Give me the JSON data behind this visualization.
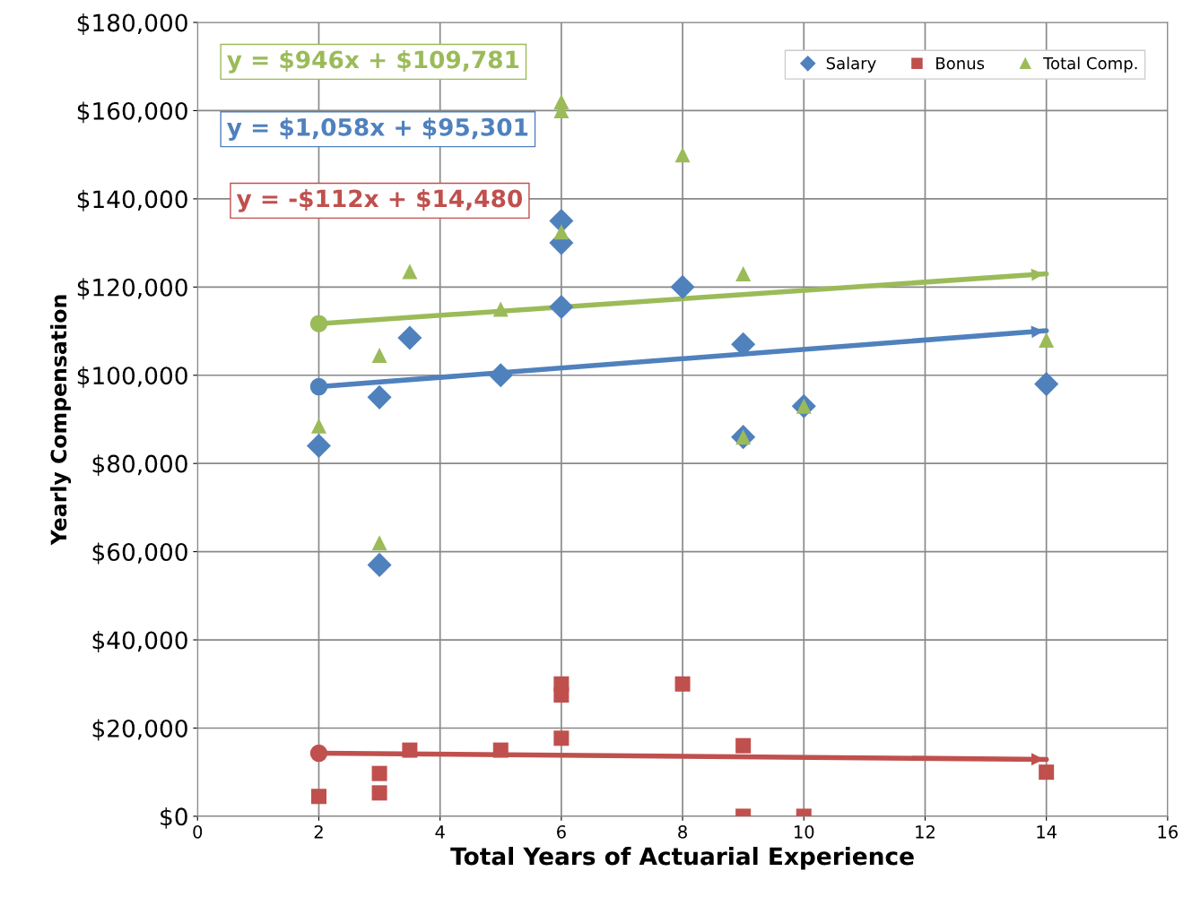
{
  "chart_data": {
    "type": "scatter",
    "xlabel": "Total Years of Actuarial Experience",
    "ylabel": "Yearly Compensation",
    "xlim": [
      0,
      16
    ],
    "xticks": [
      0,
      2,
      4,
      6,
      8,
      10,
      12,
      14,
      16
    ],
    "ylim": [
      0,
      180000
    ],
    "yticks": [
      {
        "value": 0,
        "label": "$0"
      },
      {
        "value": 20000,
        "label": "$20,000"
      },
      {
        "value": 40000,
        "label": "$40,000"
      },
      {
        "value": 60000,
        "label": "$60,000"
      },
      {
        "value": 80000,
        "label": "$80,000"
      },
      {
        "value": 100000,
        "label": "$100,000"
      },
      {
        "value": 120000,
        "label": "$120,000"
      },
      {
        "value": 140000,
        "label": "$140,000"
      },
      {
        "value": 160000,
        "label": "$160,000"
      },
      {
        "value": 180000,
        "label": "$180,000"
      }
    ],
    "grid": true,
    "legend": "top right",
    "series": [
      {
        "name": "Salary",
        "color": "#4f81bd",
        "marker": "diamond",
        "x": [
          2,
          3,
          3,
          3.5,
          5,
          6,
          6,
          6,
          8,
          9,
          9,
          10,
          14
        ],
        "values": [
          84000,
          95000,
          57000,
          108500,
          100000,
          135000,
          130000,
          115500,
          120000,
          107000,
          86000,
          93000,
          98000
        ]
      },
      {
        "name": "Bonus",
        "color": "#c0504d",
        "marker": "square",
        "x": [
          2,
          3,
          3,
          3.5,
          5,
          6,
          6,
          6,
          8,
          9,
          9,
          10,
          14
        ],
        "values": [
          4500,
          9700,
          5300,
          15000,
          15000,
          17700,
          30000,
          27500,
          30000,
          16000,
          0,
          0,
          10000
        ]
      },
      {
        "name": "Total Comp.",
        "color": "#9bbb59",
        "marker": "triangle",
        "x": [
          2,
          3,
          3,
          3.5,
          5,
          6,
          6,
          6,
          8,
          9,
          9,
          10,
          14
        ],
        "values": [
          88500,
          104500,
          62000,
          123500,
          115000,
          162000,
          160000,
          132500,
          150000,
          123000,
          86000,
          93000,
          108000
        ]
      },
      {
        "type": "line",
        "color": "#9bbb59",
        "x": [
          2,
          14
        ],
        "values": [
          111700,
          123000
        ]
      },
      {
        "type": "line",
        "color": "#4f81bd",
        "x": [
          2,
          14
        ],
        "values": [
          97400,
          110100
        ]
      },
      {
        "type": "line",
        "color": "#c0504d",
        "x": [
          2,
          14
        ],
        "values": [
          14300,
          12900
        ]
      }
    ],
    "annotations": [
      "y = $946x + $109,781",
      "y = $1,058x + $95,301",
      "y = -$112x + $14,480"
    ]
  }
}
